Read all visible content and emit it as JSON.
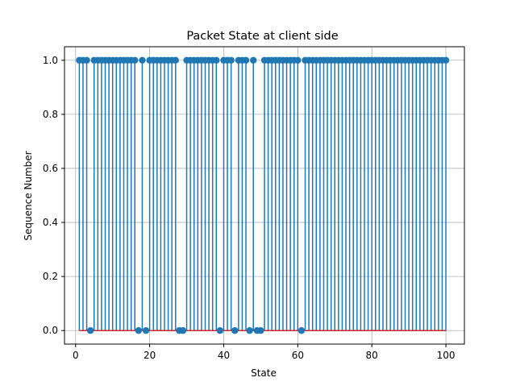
{
  "chart_data": {
    "type": "stem",
    "title": "Packet State at client side",
    "xlabel": "State",
    "ylabel": "Sequence Number",
    "xlim": [
      -3,
      105
    ],
    "ylim": [
      -0.05,
      1.05
    ],
    "xticks": [
      0,
      20,
      40,
      60,
      80,
      100
    ],
    "yticks": [
      0.0,
      0.2,
      0.4,
      0.6,
      0.8,
      1.0
    ],
    "xtick_labels": [
      "0",
      "20",
      "40",
      "60",
      "80",
      "100"
    ],
    "ytick_labels": [
      "0.0",
      "0.2",
      "0.4",
      "0.6",
      "0.8",
      "1.0"
    ],
    "grid": true,
    "baseline": 0,
    "x": [
      1,
      2,
      3,
      4,
      5,
      6,
      7,
      8,
      9,
      10,
      11,
      12,
      13,
      14,
      15,
      16,
      17,
      18,
      19,
      20,
      21,
      22,
      23,
      24,
      25,
      26,
      27,
      28,
      29,
      30,
      31,
      32,
      33,
      34,
      35,
      36,
      37,
      38,
      39,
      40,
      41,
      42,
      43,
      44,
      45,
      46,
      47,
      48,
      49,
      50,
      51,
      52,
      53,
      54,
      55,
      56,
      57,
      58,
      59,
      60,
      61,
      62,
      63,
      64,
      65,
      66,
      67,
      68,
      69,
      70,
      71,
      72,
      73,
      74,
      75,
      76,
      77,
      78,
      79,
      80,
      81,
      82,
      83,
      84,
      85,
      86,
      87,
      88,
      89,
      90,
      91,
      92,
      93,
      94,
      95,
      96,
      97,
      98,
      99,
      100
    ],
    "values": [
      1,
      1,
      1,
      0,
      1,
      1,
      1,
      1,
      1,
      1,
      1,
      1,
      1,
      1,
      1,
      1,
      0,
      1,
      0,
      1,
      1,
      1,
      1,
      1,
      1,
      1,
      1,
      0,
      0,
      1,
      1,
      1,
      1,
      1,
      1,
      1,
      1,
      1,
      0,
      1,
      1,
      1,
      0,
      1,
      1,
      1,
      0,
      1,
      0,
      0,
      1,
      1,
      1,
      1,
      1,
      1,
      1,
      1,
      1,
      1,
      0,
      1,
      1,
      1,
      1,
      1,
      1,
      1,
      1,
      1,
      1,
      1,
      1,
      1,
      1,
      1,
      1,
      1,
      1,
      1,
      1,
      1,
      1,
      1,
      1,
      1,
      1,
      1,
      1,
      1,
      1,
      1,
      1,
      1,
      1,
      1,
      1,
      1,
      1,
      1
    ],
    "colors": {
      "stem": "#1f77b4",
      "marker": "#1f77b4",
      "baseline": "#d62728",
      "grid": "#b0b0b0"
    }
  }
}
